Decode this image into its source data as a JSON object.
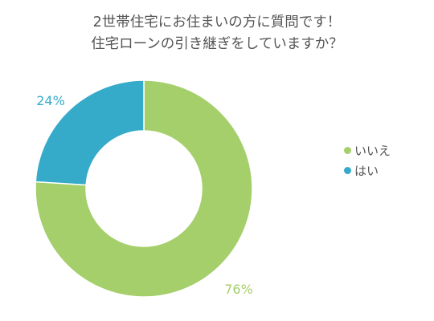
{
  "chart_data": {
    "type": "pie",
    "style": "donut",
    "title_lines": [
      "2世帯住宅にお住まいの方に質問です！",
      "住宅ローンの引き継ぎをしていますか？"
    ],
    "categories": [
      "いいえ",
      "はい"
    ],
    "values": [
      76,
      24
    ],
    "value_labels": [
      "76%",
      "24%"
    ],
    "colors": [
      "#a5cf6a",
      "#35aac9"
    ],
    "legend_position": "right"
  }
}
